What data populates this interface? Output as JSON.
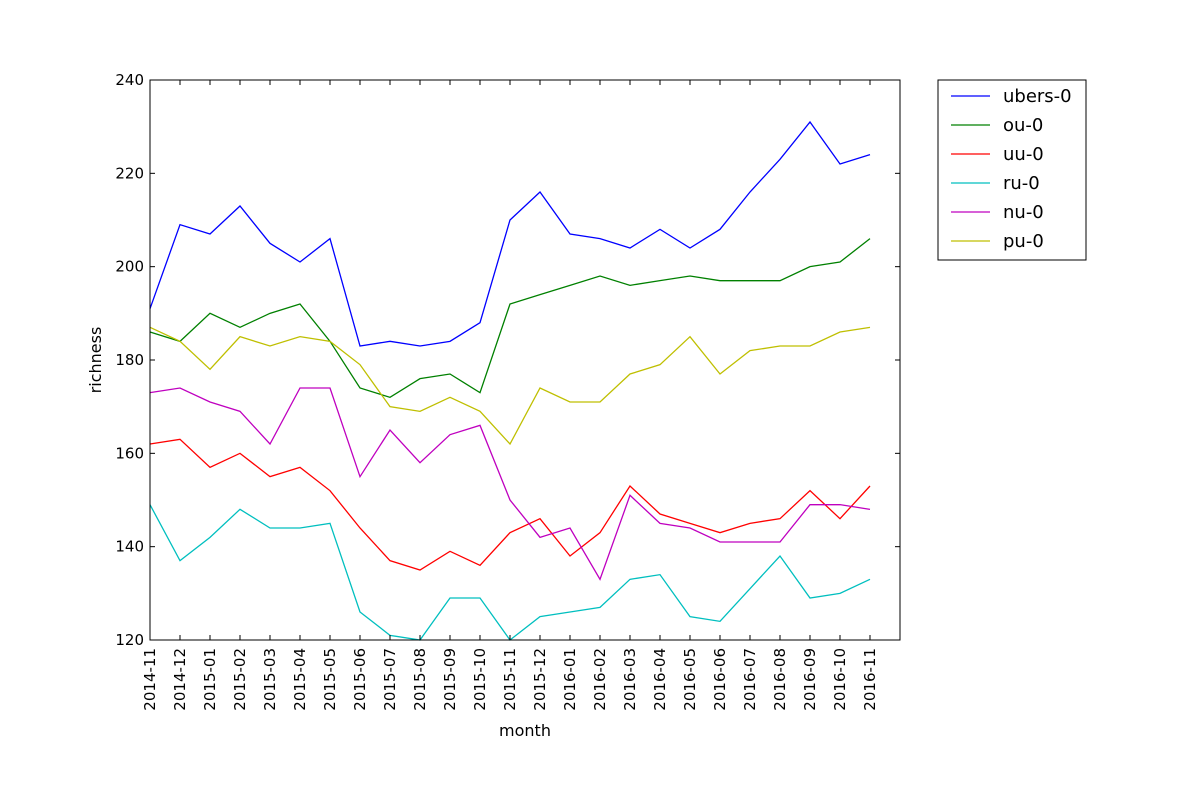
{
  "chart_data": {
    "type": "line",
    "title": "",
    "xlabel": "month",
    "ylabel": "richness",
    "ylim": [
      120,
      240
    ],
    "yticks": [
      120,
      140,
      160,
      180,
      200,
      220,
      240
    ],
    "grid": false,
    "legend_position": "outside-top-right",
    "categories": [
      "2014-11",
      "2014-12",
      "2015-01",
      "2015-02",
      "2015-03",
      "2015-04",
      "2015-05",
      "2015-06",
      "2015-07",
      "2015-08",
      "2015-09",
      "2015-10",
      "2015-11",
      "2015-12",
      "2016-01",
      "2016-02",
      "2016-03",
      "2016-04",
      "2016-05",
      "2016-06",
      "2016-07",
      "2016-08",
      "2016-09",
      "2016-10",
      "2016-11"
    ],
    "series": [
      {
        "name": "ubers-0",
        "color": "#0000ff",
        "values": [
          191,
          209,
          207,
          213,
          205,
          201,
          206,
          183,
          184,
          183,
          184,
          188,
          210,
          216,
          207,
          206,
          204,
          208,
          204,
          208,
          216,
          223,
          231,
          222,
          224
        ]
      },
      {
        "name": "ou-0",
        "color": "#008000",
        "values": [
          186,
          184,
          190,
          187,
          190,
          192,
          184,
          174,
          172,
          176,
          177,
          173,
          192,
          194,
          196,
          198,
          196,
          197,
          198,
          197,
          197,
          197,
          200,
          201,
          206
        ]
      },
      {
        "name": "uu-0",
        "color": "#ff0000",
        "values": [
          162,
          163,
          157,
          160,
          155,
          157,
          152,
          144,
          137,
          135,
          139,
          136,
          143,
          146,
          138,
          143,
          153,
          147,
          145,
          143,
          145,
          146,
          152,
          146,
          153
        ]
      },
      {
        "name": "ru-0",
        "color": "#00bfbf",
        "values": [
          149,
          137,
          142,
          148,
          144,
          144,
          145,
          126,
          121,
          120,
          129,
          129,
          120,
          125,
          126,
          127,
          133,
          134,
          125,
          124,
          131,
          138,
          129,
          130,
          133
        ]
      },
      {
        "name": "nu-0",
        "color": "#bf00bf",
        "values": [
          173,
          174,
          171,
          169,
          162,
          174,
          174,
          155,
          165,
          158,
          164,
          166,
          150,
          142,
          144,
          133,
          151,
          145,
          144,
          141,
          141,
          141,
          149,
          149,
          148
        ]
      },
      {
        "name": "pu-0",
        "color": "#bfbf00",
        "values": [
          187,
          184,
          178,
          185,
          183,
          185,
          184,
          179,
          170,
          169,
          172,
          169,
          162,
          174,
          171,
          171,
          177,
          179,
          185,
          177,
          182,
          183,
          183,
          186,
          187
        ]
      }
    ]
  }
}
